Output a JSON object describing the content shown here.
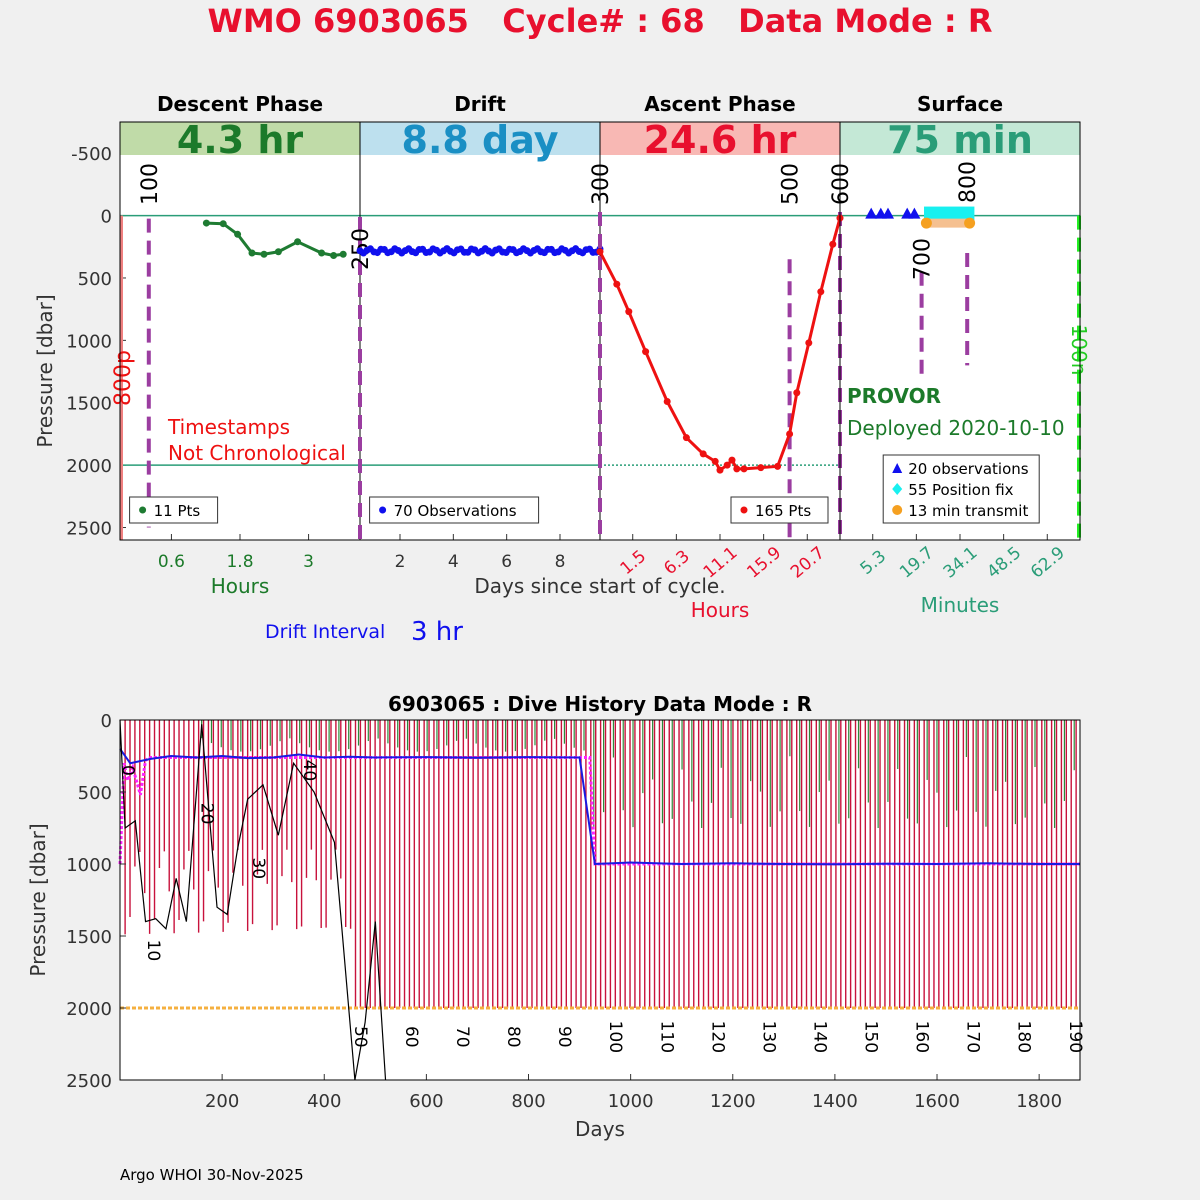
{
  "figure_title": "WMO 6903065   Cycle# : 68   Data Mode : R",
  "footer": "Argo WHOI 30-Nov-2025",
  "chart_data": [
    {
      "type": "line",
      "name": "cycle-profile",
      "ylabel": "Pressure [dbar]",
      "ylim": [
        2600,
        -750
      ],
      "yticks": [
        -500,
        0,
        500,
        1000,
        1500,
        2000,
        2500
      ],
      "xlabel": "Days since start of cycle.",
      "reference_lines": [
        0,
        2000
      ],
      "panels": [
        {
          "title": "Descent Phase",
          "banner": "4.3 hr",
          "banner_color": "#c0dba8",
          "banner_text_color": "#1c7a2a",
          "axis_label": "Hours",
          "ticks": [
            "0.6",
            "1.8",
            "3"
          ],
          "tick_color": "#1c7a2a",
          "legend": "11 Pts",
          "series": {
            "name": "Descent",
            "color": "#1e7b32",
            "x": [
              0.36,
              0.43,
              0.49,
              0.55,
              0.6,
              0.66,
              0.74,
              0.84,
              0.89,
              0.93
            ],
            "y": [
              60,
              65,
              150,
              300,
              310,
              290,
              210,
              300,
              320,
              310
            ]
          },
          "markers": [
            {
              "label": "100",
              "x": 0.12
            }
          ],
          "annotations": [
            "Timestamps",
            "Not Chronological"
          ],
          "side_label": "800p"
        },
        {
          "title": "Drift",
          "banner": "8.8 day",
          "banner_color": "#bde0ee",
          "banner_text_color": "#1a8fc4",
          "axis_label": "",
          "ticks": [
            "2",
            "4",
            "6",
            "8"
          ],
          "tick_color": "#333333",
          "legend": "70 Observations",
          "series": {
            "name": "Drift",
            "color": "#1010ee",
            "count": 70,
            "range": [
              265,
              300
            ]
          },
          "markers": [
            {
              "label": "250",
              "x": 0.0
            }
          ],
          "drift_interval_label": "Drift Interval",
          "drift_interval": "3 hr"
        },
        {
          "title": "Ascent Phase",
          "banner": "24.6 hr",
          "banner_color": "#f8b8b4",
          "banner_text_color": "#e8102e",
          "axis_label": "Hours",
          "ticks": [
            "1.5",
            "6.3",
            "11.1",
            "15.9",
            "20.7"
          ],
          "tick_color": "#e8102e",
          "legend": "165 Pts",
          "series": {
            "name": "Ascent",
            "color": "#ee1111",
            "x": [
              0.0,
              0.07,
              0.12,
              0.19,
              0.28,
              0.36,
              0.43,
              0.48,
              0.5,
              0.53,
              0.55,
              0.57,
              0.6,
              0.67,
              0.74,
              0.79,
              0.82,
              0.87,
              0.92,
              0.97,
              1.0
            ],
            "y": [
              290,
              550,
              770,
              1090,
              1490,
              1780,
              1910,
              1970,
              2040,
              2000,
              1960,
              2030,
              2030,
              2020,
              2010,
              1750,
              1420,
              1020,
              610,
              230,
              20
            ]
          },
          "markers": [
            {
              "label": "300",
              "x": 0.0
            },
            {
              "label": "500",
              "x": 0.79
            },
            {
              "label": "600",
              "x": 1.0
            }
          ]
        },
        {
          "title": "Surface",
          "banner": "75 min",
          "banner_color": "#c4e8d6",
          "banner_text_color": "#2a9d78",
          "axis_label": "Minutes",
          "ticks": [
            "5.3",
            "19.7",
            "34.1",
            "48.5",
            "62.9"
          ],
          "tick_color": "#2a9d78",
          "legend_items": [
            {
              "label": "20 observations",
              "color": "#1010ee",
              "marker": "triangle"
            },
            {
              "label": "55 Position fix",
              "color": "#18f0f0",
              "marker": "diamond"
            },
            {
              "label": "13 min transmit",
              "color": "#f5a020",
              "marker": "circle"
            }
          ],
          "float_type": "PROVOR",
          "deployed": "Deployed 2020-10-10",
          "markers": [
            {
              "label": "700",
              "x": 0.34
            },
            {
              "label": "800",
              "x": 0.53
            }
          ],
          "side_label": "100n"
        }
      ]
    },
    {
      "type": "line",
      "name": "dive-history",
      "title": "6903065 : Dive History      Data Mode : R",
      "xlabel": "Days",
      "ylabel": "Pressure [dbar]",
      "xlim": [
        0,
        1880
      ],
      "ylim": [
        2500,
        0
      ],
      "xticks": [
        200,
        400,
        600,
        800,
        1000,
        1200,
        1400,
        1600,
        1800
      ],
      "yticks": [
        0,
        500,
        1000,
        1500,
        2000,
        2500
      ],
      "cycle_labels": [
        {
          "label": "0",
          "day": 5,
          "depth": 350
        },
        {
          "label": "10",
          "day": 55,
          "depth": 1600
        },
        {
          "label": "20",
          "day": 160,
          "depth": 650
        },
        {
          "label": "30",
          "day": 260,
          "depth": 1030
        },
        {
          "label": "40",
          "day": 360,
          "depth": 350
        },
        {
          "label": "50",
          "day": 460,
          "depth": 2200
        },
        {
          "label": "60",
          "day": 560,
          "depth": 2200
        },
        {
          "label": "70",
          "day": 660,
          "depth": 2200
        },
        {
          "label": "80",
          "day": 760,
          "depth": 2200
        },
        {
          "label": "90",
          "day": 860,
          "depth": 2200
        },
        {
          "label": "100",
          "day": 960,
          "depth": 2200
        },
        {
          "label": "110",
          "day": 1060,
          "depth": 2200
        },
        {
          "label": "120",
          "day": 1160,
          "depth": 2200
        },
        {
          "label": "130",
          "day": 1260,
          "depth": 2200
        },
        {
          "label": "140",
          "day": 1360,
          "depth": 2200
        },
        {
          "label": "150",
          "day": 1460,
          "depth": 2200
        },
        {
          "label": "160",
          "day": 1560,
          "depth": 2200
        },
        {
          "label": "170",
          "day": 1660,
          "depth": 2200
        },
        {
          "label": "180",
          "day": 1760,
          "depth": 2200
        },
        {
          "label": "190",
          "day": 1860,
          "depth": 2200
        }
      ],
      "series": [
        {
          "name": "Parking pressure (dotted)",
          "color": "#ff22ff",
          "x": [
            0,
            8,
            15,
            25,
            40,
            50,
            60,
            80,
            920,
            930,
            1880
          ],
          "y": [
            1000,
            300,
            420,
            330,
            520,
            280,
            260,
            260,
            260,
            1000,
            1000
          ]
        },
        {
          "name": "Drift pressure",
          "color": "#1a1ae0",
          "x": [
            0,
            20,
            60,
            100,
            150,
            200,
            250,
            300,
            350,
            400,
            450,
            500,
            600,
            700,
            800,
            900,
            930,
            1000,
            1100,
            1200,
            1300,
            1400,
            1500,
            1600,
            1700,
            1800,
            1880
          ],
          "y": [
            200,
            300,
            270,
            250,
            260,
            250,
            265,
            260,
            240,
            260,
            255,
            260,
            258,
            262,
            258,
            260,
            1000,
            990,
            1000,
            995,
            1000,
            1002,
            998,
            1000,
            995,
            1000,
            1000
          ]
        },
        {
          "name": "Target 2000 dbar",
          "color": "#f5b040",
          "x": [
            0,
            1880
          ],
          "y": [
            2000,
            2000
          ]
        },
        {
          "name": "Max profile depth (black)",
          "color": "#000000",
          "x": [
            0,
            10,
            30,
            50,
            70,
            90,
            110,
            130,
            160,
            190,
            210,
            230,
            250,
            280,
            310,
            340,
            380,
            420,
            460,
            480,
            500,
            520
          ],
          "y": [
            0,
            750,
            700,
            1400,
            1380,
            1450,
            1100,
            1400,
            30,
            1300,
            1350,
            900,
            550,
            450,
            800,
            300,
            500,
            850,
            2500,
            2100,
            1400,
            2500
          ]
        }
      ]
    }
  ]
}
